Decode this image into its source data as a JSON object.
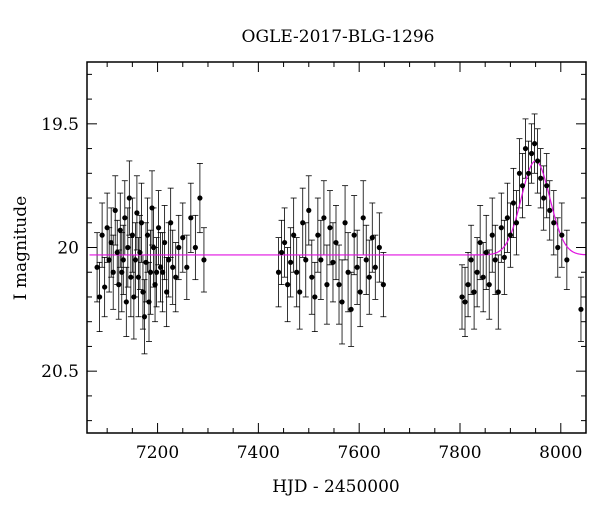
{
  "chart_data": {
    "type": "scatter",
    "title": "OGLE-2017-BLG-1296",
    "xlabel": "HJD - 2450000",
    "ylabel": "I magnitude",
    "xlim": [
      7060,
      8050
    ],
    "ylim": [
      20.75,
      19.25
    ],
    "y_inverted": true,
    "x_ticks": [
      7200,
      7400,
      7600,
      7800,
      8000
    ],
    "x_tick_labels": [
      "7200",
      "7400",
      "7600",
      "7800",
      "8000"
    ],
    "y_ticks": [
      19.5,
      20,
      20.5
    ],
    "y_tick_labels": [
      "19.5",
      "20",
      "20.5"
    ],
    "grid": false,
    "colors": {
      "points": "#000000",
      "model": "#e010e0"
    },
    "series": [
      {
        "type": "scatter_errorbar",
        "points": [
          [
            7080,
            20.08,
            0.14
          ],
          [
            7085,
            20.2,
            0.14
          ],
          [
            7090,
            19.95,
            0.13
          ],
          [
            7095,
            20.16,
            0.12
          ],
          [
            7100,
            19.92,
            0.14
          ],
          [
            7104,
            20.05,
            0.13
          ],
          [
            7108,
            19.98,
            0.14
          ],
          [
            7112,
            20.1,
            0.15
          ],
          [
            7116,
            19.85,
            0.14
          ],
          [
            7120,
            20.02,
            0.13
          ],
          [
            7123,
            20.15,
            0.14
          ],
          [
            7126,
            19.93,
            0.15
          ],
          [
            7129,
            20.1,
            0.16
          ],
          [
            7132,
            20.05,
            0.14
          ],
          [
            7135,
            19.88,
            0.15
          ],
          [
            7138,
            20.22,
            0.14
          ],
          [
            7141,
            20.0,
            0.16
          ],
          [
            7144,
            19.8,
            0.15
          ],
          [
            7147,
            20.12,
            0.16
          ],
          [
            7150,
            19.95,
            0.15
          ],
          [
            7153,
            20.2,
            0.17
          ],
          [
            7156,
            20.05,
            0.15
          ],
          [
            7159,
            19.86,
            0.15
          ],
          [
            7162,
            20.12,
            0.16
          ],
          [
            7165,
            20.02,
            0.15
          ],
          [
            7168,
            19.9,
            0.16
          ],
          [
            7171,
            20.18,
            0.15
          ],
          [
            7174,
            20.28,
            0.15
          ],
          [
            7177,
            20.06,
            0.16
          ],
          [
            7180,
            19.95,
            0.15
          ],
          [
            7183,
            20.22,
            0.16
          ],
          [
            7186,
            20.1,
            0.17
          ],
          [
            7189,
            19.84,
            0.15
          ],
          [
            7192,
            20.0,
            0.16
          ],
          [
            7195,
            20.15,
            0.15
          ],
          [
            7198,
            20.1,
            0.14
          ],
          [
            7202,
            19.92,
            0.15
          ],
          [
            7206,
            20.08,
            0.14
          ],
          [
            7210,
            20.1,
            0.16
          ],
          [
            7214,
            19.98,
            0.15
          ],
          [
            7218,
            20.18,
            0.14
          ],
          [
            7222,
            20.05,
            0.15
          ],
          [
            7226,
            19.9,
            0.14
          ],
          [
            7230,
            20.08,
            0.15
          ],
          [
            7236,
            20.12,
            0.14
          ],
          [
            7242,
            20.0,
            0.13
          ],
          [
            7250,
            19.96,
            0.14
          ],
          [
            7258,
            20.08,
            0.13
          ],
          [
            7266,
            19.88,
            0.14
          ],
          [
            7275,
            20.0,
            0.13
          ],
          [
            7284,
            19.8,
            0.14
          ],
          [
            7292,
            20.05,
            0.13
          ],
          [
            7440,
            20.1,
            0.14
          ],
          [
            7446,
            20.02,
            0.13
          ],
          [
            7452,
            19.98,
            0.14
          ],
          [
            7458,
            20.15,
            0.15
          ],
          [
            7464,
            20.06,
            0.14
          ],
          [
            7470,
            19.95,
            0.15
          ],
          [
            7476,
            20.1,
            0.14
          ],
          [
            7482,
            20.18,
            0.15
          ],
          [
            7488,
            19.9,
            0.14
          ],
          [
            7494,
            20.05,
            0.15
          ],
          [
            7500,
            19.85,
            0.14
          ],
          [
            7506,
            20.12,
            0.15
          ],
          [
            7512,
            20.2,
            0.14
          ],
          [
            7518,
            19.95,
            0.15
          ],
          [
            7524,
            20.05,
            0.16
          ],
          [
            7530,
            19.88,
            0.15
          ],
          [
            7536,
            20.15,
            0.16
          ],
          [
            7542,
            19.92,
            0.15
          ],
          [
            7548,
            20.06,
            0.16
          ],
          [
            7554,
            19.98,
            0.15
          ],
          [
            7560,
            20.15,
            0.16
          ],
          [
            7566,
            20.22,
            0.17
          ],
          [
            7572,
            19.9,
            0.15
          ],
          [
            7578,
            20.1,
            0.16
          ],
          [
            7584,
            20.25,
            0.15
          ],
          [
            7590,
            19.95,
            0.16
          ],
          [
            7596,
            20.08,
            0.15
          ],
          [
            7602,
            20.18,
            0.14
          ],
          [
            7608,
            19.88,
            0.15
          ],
          [
            7614,
            20.05,
            0.14
          ],
          [
            7620,
            20.12,
            0.15
          ],
          [
            7626,
            19.96,
            0.14
          ],
          [
            7632,
            20.08,
            0.13
          ],
          [
            7640,
            20.0,
            0.14
          ],
          [
            7648,
            20.15,
            0.13
          ],
          [
            7804,
            20.2,
            0.13
          ],
          [
            7810,
            20.22,
            0.14
          ],
          [
            7816,
            20.15,
            0.13
          ],
          [
            7822,
            20.05,
            0.14
          ],
          [
            7828,
            20.18,
            0.15
          ],
          [
            7834,
            20.1,
            0.14
          ],
          [
            7840,
            19.98,
            0.15
          ],
          [
            7846,
            20.12,
            0.14
          ],
          [
            7852,
            20.02,
            0.15
          ],
          [
            7858,
            20.15,
            0.14
          ],
          [
            7864,
            19.95,
            0.15
          ],
          [
            7870,
            20.05,
            0.14
          ],
          [
            7876,
            20.18,
            0.15
          ],
          [
            7882,
            19.92,
            0.14
          ],
          [
            7888,
            20.04,
            0.15
          ],
          [
            7894,
            19.88,
            0.14
          ],
          [
            7900,
            19.95,
            0.13
          ],
          [
            7906,
            19.82,
            0.14
          ],
          [
            7912,
            19.9,
            0.13
          ],
          [
            7918,
            19.7,
            0.14
          ],
          [
            7924,
            19.75,
            0.13
          ],
          [
            7930,
            19.6,
            0.12
          ],
          [
            7936,
            19.7,
            0.13
          ],
          [
            7942,
            19.62,
            0.12
          ],
          [
            7948,
            19.58,
            0.12
          ],
          [
            7954,
            19.65,
            0.13
          ],
          [
            7960,
            19.72,
            0.12
          ],
          [
            7966,
            19.8,
            0.13
          ],
          [
            7972,
            19.75,
            0.13
          ],
          [
            7978,
            19.85,
            0.12
          ],
          [
            7986,
            19.9,
            0.13
          ],
          [
            7994,
            20.0,
            0.12
          ],
          [
            8002,
            19.95,
            0.13
          ],
          [
            8012,
            20.05,
            0.12
          ],
          [
            8040,
            20.25,
            0.13
          ]
        ]
      },
      {
        "type": "model_curve",
        "baseline": 20.03,
        "peak_mag": 19.65,
        "peak_time": 7950,
        "width": 40
      }
    ]
  }
}
